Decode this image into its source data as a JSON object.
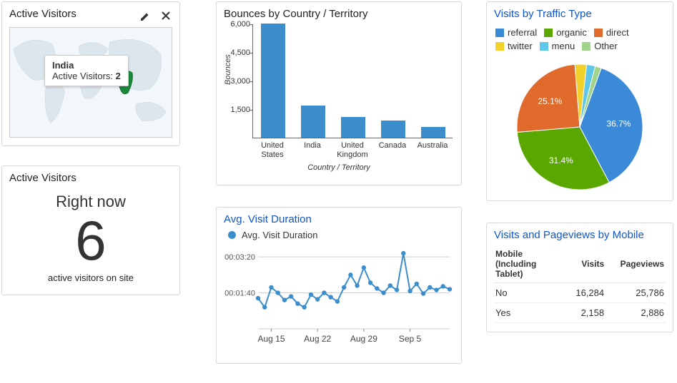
{
  "colors": {
    "bar": "#3c8dcb",
    "line": "#3c8dcb",
    "highlight_region": "#1a8a3a",
    "map_bg": "#f2f7fb",
    "map_land": "#dce6ed"
  },
  "map_widget": {
    "title": "Active Visitors",
    "tooltip_country": "India",
    "tooltip_label": "Active Visitors:",
    "tooltip_value": "2"
  },
  "now_widget": {
    "title": "Active Visitors",
    "heading": "Right now",
    "value": "6",
    "subtext": "active visitors on site"
  },
  "bounces_widget": {
    "title": "Bounces by Country / Territory",
    "type": "bar",
    "ylabel": "Bounces",
    "xlabel": "Country / Territory",
    "ymax": 6000,
    "yticks": [
      1500,
      3000,
      4500,
      6000
    ],
    "categories": [
      "United States",
      "India",
      "United Kingdom",
      "Canada",
      "Australia"
    ],
    "values": [
      6100,
      1700,
      1100,
      900,
      560
    ]
  },
  "avg_widget": {
    "title": "Avg. Visit Duration",
    "legend_label": "Avg. Visit Duration",
    "type": "line",
    "yticks": [
      "00:01:40",
      "00:03:20"
    ],
    "xlabels": [
      "Aug 15",
      "Aug 22",
      "Aug 29",
      "Sep 5"
    ],
    "ymax_seconds": 230,
    "values_seconds": [
      85,
      60,
      115,
      100,
      80,
      90,
      70,
      60,
      95,
      82,
      100,
      88,
      76,
      115,
      150,
      120,
      170,
      128,
      112,
      100,
      120,
      108,
      210,
      105,
      125,
      98,
      115,
      108,
      118,
      110
    ]
  },
  "pie_widget": {
    "title": "Visits by Traffic Type",
    "type": "pie",
    "slices": [
      {
        "label": "referral",
        "value": 36.7,
        "color": "#3b8ad8",
        "show_label": true
      },
      {
        "label": "organic",
        "value": 31.4,
        "color": "#5aa700",
        "show_label": true
      },
      {
        "label": "direct",
        "value": 25.1,
        "color": "#e06a2b",
        "show_label": true
      },
      {
        "label": "twitter",
        "value": 3.0,
        "color": "#f3d12a",
        "show_label": false
      },
      {
        "label": "menu",
        "value": 2.2,
        "color": "#5ec6e8",
        "show_label": false
      },
      {
        "label": "Other",
        "value": 1.6,
        "color": "#9fd48a",
        "show_label": false
      }
    ]
  },
  "table_widget": {
    "title": "Visits and Pageviews by Mobile",
    "columns": [
      "Mobile (Including Tablet)",
      "Visits",
      "Pageviews"
    ],
    "rows": [
      [
        "No",
        "16,284",
        "25,786"
      ],
      [
        "Yes",
        "2,158",
        "2,886"
      ]
    ]
  }
}
